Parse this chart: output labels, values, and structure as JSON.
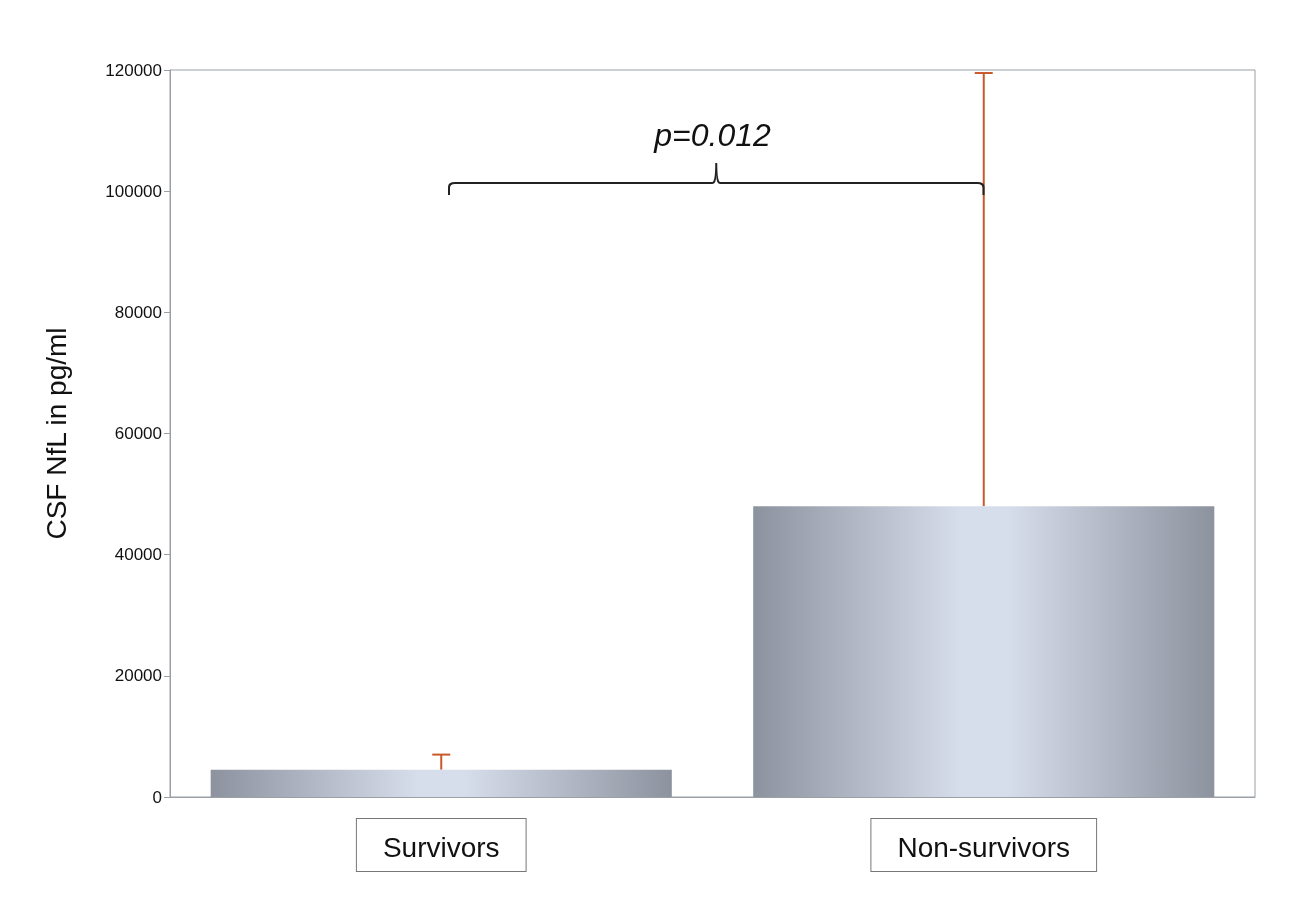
{
  "chart_data": {
    "type": "bar",
    "ylabel": "CSF NfL in pg/ml",
    "categories": [
      "Survivors",
      "Non-survivors"
    ],
    "values": [
      4500,
      48000
    ],
    "color": "#d7deeb",
    "errors": [
      [
        4500,
        7000
      ],
      [
        48000,
        119500
      ]
    ],
    "ylim": [
      0,
      120000
    ],
    "yticks": [
      0,
      20000,
      40000,
      60000,
      80000,
      100000,
      120000
    ],
    "grid": false,
    "annotations": [
      "p=0.012"
    ]
  }
}
